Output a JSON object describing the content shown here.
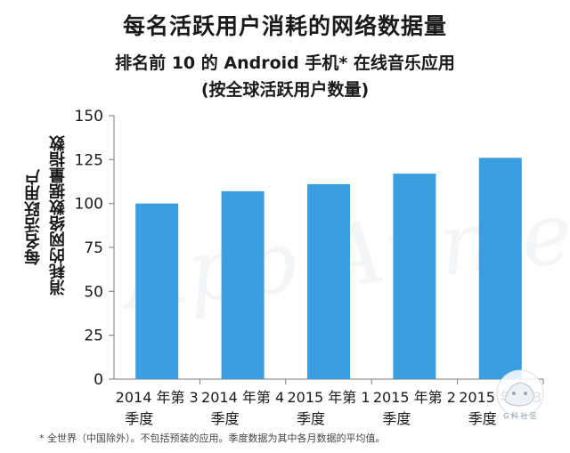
{
  "chart_data": {
    "type": "bar",
    "title": "每名活跃用户消耗的网络数据量",
    "subtitle_line1": "排名前 10 的 Android 手机* 在线音乐应用",
    "subtitle_line2": "(按全球活跃用户数量)",
    "ylabel_line1": "每名活跃用户",
    "ylabel_line2": "消耗的网络数据量指数",
    "categories": [
      [
        "2014 年第 3",
        "季度"
      ],
      [
        "2014 年第 4",
        "季度"
      ],
      [
        "2015 年第 1",
        "季度"
      ],
      [
        "2015 年第 2",
        "季度"
      ],
      [
        "2015 年第 3",
        "季度"
      ]
    ],
    "values": [
      100,
      107,
      111,
      117,
      126
    ],
    "ylim": [
      0,
      150
    ],
    "yticks": [
      0,
      25,
      50,
      75,
      100,
      125,
      150
    ],
    "bar_color": "#3a9ee0",
    "grid": false
  },
  "footnote": "* 全世界（中国除外）。不包括预装的应用。季度数据为其中各月数据的平均值。",
  "watermark": "App Annie",
  "badge_text": "G 科 社 区"
}
